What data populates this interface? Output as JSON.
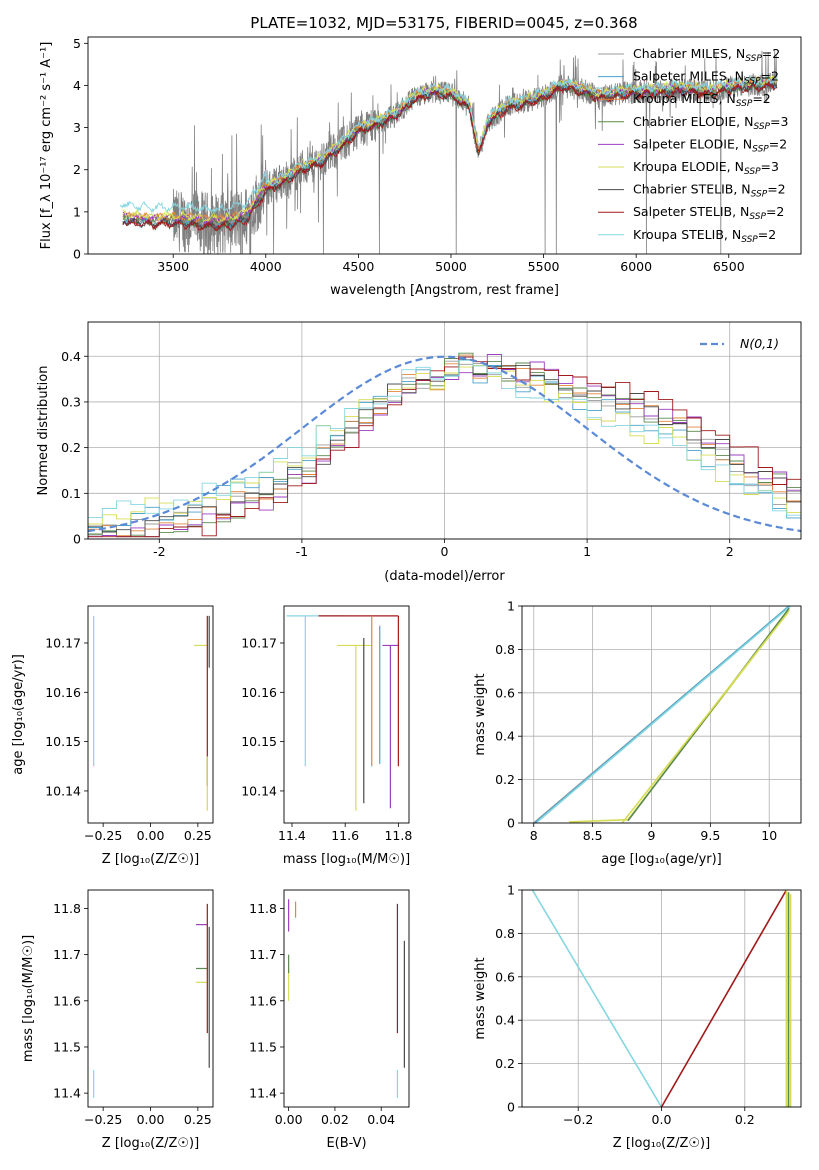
{
  "figure": {
    "title": "PLATE=1032, MJD=53175, FIBERID=0045, z=0.368"
  },
  "colors": {
    "Chabrier MILES": "#9b9b9b",
    "Salpeter MILES": "#4aa3c9",
    "Kroupa MILES": "#e2843c",
    "Chabrier ELODIE": "#5c8a4f",
    "Salpeter ELODIE": "#9b3fc0",
    "Kroupa ELODIE": "#d6dc55",
    "Chabrier STELIB": "#4b4b4b",
    "Salpeter STELIB": "#a11a1a",
    "Kroupa STELIB": "#86d6e0",
    "gaussian": "#5b8ad6",
    "data": "#808080"
  },
  "chart_data": [
    {
      "id": "spectrum",
      "type": "line",
      "xlabel": "wavelength [Angstrom, rest frame]",
      "ylabel": "Flux [f_λ 10⁻¹⁷ erg cm⁻² s⁻¹ A⁻¹]",
      "xlim": [
        3040,
        6890
      ],
      "ylim": [
        0,
        5.15
      ],
      "xticks": [
        3500,
        4000,
        4500,
        5000,
        5500,
        6000,
        6500
      ],
      "yticks": [
        0,
        1,
        2,
        3,
        4,
        5
      ],
      "grid": false,
      "legend_position": "top-right",
      "legend": [
        {
          "name": "Chabrier MILES",
          "label": "Chabrier MILES, N",
          "sub": "SSP",
          "suffix": "=2"
        },
        {
          "name": "Salpeter MILES",
          "label": "Salpeter MILES, N",
          "sub": "SSP",
          "suffix": "=2"
        },
        {
          "name": "Kroupa MILES",
          "label": "Kroupa MILES, N",
          "sub": "SSP",
          "suffix": "=2"
        },
        {
          "name": "Chabrier ELODIE",
          "label": "Chabrier ELODIE, N",
          "sub": "SSP",
          "suffix": "=3"
        },
        {
          "name": "Salpeter ELODIE",
          "label": "Salpeter ELODIE, N",
          "sub": "SSP",
          "suffix": "=2"
        },
        {
          "name": "Kroupa ELODIE",
          "label": "Kroupa ELODIE, N",
          "sub": "SSP",
          "suffix": "=3"
        },
        {
          "name": "Chabrier STELIB",
          "label": "Chabrier STELIB, N",
          "sub": "SSP",
          "suffix": "=2"
        },
        {
          "name": "Salpeter STELIB",
          "label": "Salpeter STELIB, N",
          "sub": "SSP",
          "suffix": "=2"
        },
        {
          "name": "Kroupa STELIB",
          "label": "Kroupa STELIB, N",
          "sub": "SSP",
          "suffix": "=2"
        }
      ],
      "continuum": {
        "wavelength": [
          3220,
          3300,
          3400,
          3500,
          3600,
          3700,
          3800,
          3900,
          4000,
          4100,
          4200,
          4300,
          4400,
          4500,
          4600,
          4700,
          4800,
          4900,
          5000,
          5100,
          5150,
          5200,
          5300,
          5400,
          5500,
          5600,
          5700,
          5800,
          5900,
          6000,
          6100,
          6200,
          6300,
          6400,
          6500,
          6600,
          6750
        ],
        "flux": [
          0.85,
          0.8,
          0.78,
          0.8,
          0.78,
          0.72,
          0.75,
          0.9,
          1.55,
          1.75,
          2.05,
          2.2,
          2.55,
          2.95,
          3.1,
          3.3,
          3.7,
          3.85,
          3.8,
          3.5,
          2.4,
          3.15,
          3.5,
          3.6,
          3.75,
          4.0,
          3.9,
          3.75,
          3.8,
          3.85,
          3.85,
          3.9,
          3.9,
          3.85,
          3.95,
          4.0,
          4.05
        ]
      },
      "data_spectrum": {
        "wavelength_range": [
          3500,
          6760
        ],
        "noise": "high in blue, moderate in red"
      }
    },
    {
      "id": "residuals",
      "type": "histogram",
      "xlabel": "(data-model)/error",
      "ylabel": "Normed distribution",
      "xlim": [
        -2.5,
        2.5
      ],
      "ylim": [
        0,
        0.475
      ],
      "xticks": [
        -2,
        -1,
        0,
        1,
        2
      ],
      "yticks": [
        0.0,
        0.1,
        0.2,
        0.3,
        0.4
      ],
      "grid": true,
      "legend_position": "top-right",
      "gaussian_label": "N(0,1)",
      "bin_edges": [
        -2.5,
        -2.4,
        -2.3,
        -2.2,
        -2.1,
        -2.0,
        -1.9,
        -1.8,
        -1.7,
        -1.6,
        -1.5,
        -1.4,
        -1.3,
        -1.2,
        -1.1,
        -1.0,
        -0.9,
        -0.8,
        -0.7,
        -0.6,
        -0.5,
        -0.4,
        -0.3,
        -0.2,
        -0.1,
        0.0,
        0.1,
        0.2,
        0.3,
        0.4,
        0.5,
        0.6,
        0.7,
        0.8,
        0.9,
        1.0,
        1.1,
        1.2,
        1.3,
        1.4,
        1.5,
        1.6,
        1.7,
        1.8,
        1.9,
        2.0,
        2.1,
        2.2,
        2.3,
        2.4,
        2.5
      ],
      "base_shape": [
        0.02,
        0.02,
        0.025,
        0.03,
        0.035,
        0.045,
        0.05,
        0.06,
        0.07,
        0.08,
        0.09,
        0.1,
        0.11,
        0.13,
        0.15,
        0.17,
        0.2,
        0.22,
        0.24,
        0.27,
        0.3,
        0.32,
        0.34,
        0.35,
        0.35,
        0.37,
        0.38,
        0.37,
        0.37,
        0.36,
        0.35,
        0.35,
        0.34,
        0.33,
        0.32,
        0.31,
        0.3,
        0.29,
        0.28,
        0.26,
        0.25,
        0.24,
        0.22,
        0.2,
        0.18,
        0.16,
        0.14,
        0.12,
        0.1,
        0.09
      ]
    },
    {
      "id": "age-vs-Z",
      "type": "errorbar",
      "xlabel": "Z [log₁₀(Z/Z☉)]",
      "ylabel": "age  [log₁₀(age/yr)]",
      "xlim": [
        -0.33,
        0.33
      ],
      "ylim": [
        10.1335,
        10.1775
      ],
      "xticks": [
        -0.25,
        0.0,
        0.25
      ],
      "xtick_labels": [
        "−0.25",
        "0.00",
        "0.25"
      ],
      "yticks": [
        10.14,
        10.15,
        10.16,
        10.17
      ],
      "points": [
        {
          "name": "Kroupa STELIB",
          "x": -0.3,
          "y": 10.16,
          "ylo": 10.145,
          "yhi": 10.1755
        },
        {
          "name": "Kroupa ELODIE",
          "x": 0.27,
          "y": 10.1695,
          "xlo": 0.23,
          "xhi": 0.3
        },
        {
          "name": "Salpeter STELIB",
          "x": 0.3,
          "y": 10.16,
          "ylo": 10.141,
          "yhi": 10.1755
        },
        {
          "name": "Kroupa ELODIE",
          "x": 0.3,
          "y": 10.14,
          "ylo": 10.136,
          "yhi": 10.147
        },
        {
          "name": "Chabrier STELIB",
          "x": 0.31,
          "y": 10.17,
          "ylo": 10.165,
          "yhi": 10.1755
        }
      ]
    },
    {
      "id": "age-vs-mass",
      "type": "errorbar",
      "xlabel": "mass [log₁₀(M/M☉)]",
      "xlim": [
        11.37,
        11.84
      ],
      "ylim": [
        10.1335,
        10.1775
      ],
      "xticks": [
        11.4,
        11.6,
        11.8
      ],
      "yticks": [
        10.14,
        10.15,
        10.16,
        10.17
      ],
      "points": [
        {
          "name": "Kroupa STELIB",
          "x": 11.45,
          "y": 10.1755,
          "xlo": 11.38,
          "xhi": 11.6,
          "ylo": 10.145,
          "yhi": 10.1755
        },
        {
          "name": "Salpeter STELIB",
          "x": 11.52,
          "y": 10.1755,
          "xlo": 11.5,
          "xhi": 11.8,
          "ylo": 10.1755,
          "yhi": 10.1755
        },
        {
          "name": "Kroupa ELODIE",
          "x": 11.64,
          "y": 10.1695,
          "xlo": 11.57,
          "xhi": 11.7,
          "ylo": 10.136,
          "yhi": 10.1695
        },
        {
          "name": "Chabrier STELIB",
          "x": 11.67,
          "y": 10.1695,
          "ylo": 10.1375,
          "yhi": 10.171
        },
        {
          "name": "Kroupa MILES",
          "x": 11.7,
          "y": 10.1695,
          "ylo": 10.145,
          "yhi": 10.1755
        },
        {
          "name": "Salpeter MILES",
          "x": 11.73,
          "y": 10.1695,
          "ylo": 10.1455,
          "yhi": 10.1735
        },
        {
          "name": "Salpeter ELODIE",
          "x": 11.77,
          "y": 10.1695,
          "xlo": 11.74,
          "xhi": 11.8,
          "ylo": 10.1365,
          "yhi": 10.1695
        },
        {
          "name": "Salpeter STELIB",
          "x": 11.8,
          "y": 10.1695,
          "ylo": 10.145,
          "yhi": 10.1755
        }
      ]
    },
    {
      "id": "mass-weight-vs-age",
      "type": "line",
      "xlabel": "age  [log₁₀(age/yr)]",
      "ylabel": "mass weight",
      "xlim": [
        7.9,
        10.27
      ],
      "ylim": [
        0,
        1
      ],
      "xticks": [
        8.0,
        8.5,
        9.0,
        9.5,
        10.0
      ],
      "yticks": [
        0.0,
        0.2,
        0.4,
        0.6,
        0.8,
        1.0
      ],
      "grid": true,
      "series": [
        {
          "color": "Chabrier MILES",
          "x": [
            8.0,
            10.17
          ],
          "y": [
            0.0,
            1.0
          ]
        },
        {
          "color": "Salpeter MILES",
          "x": [
            8.01,
            10.17
          ],
          "y": [
            0.0,
            1.0
          ]
        },
        {
          "color": "Kroupa STELIB",
          "x": [
            8.03,
            10.18
          ],
          "y": [
            0.005,
            1.0
          ]
        },
        {
          "color": "Kroupa ELODIE",
          "x": [
            8.3,
            8.8,
            10.17
          ],
          "y": [
            0.005,
            0.015,
            0.98
          ]
        },
        {
          "color": "Chabrier ELODIE",
          "x": [
            8.8,
            10.17
          ],
          "y": [
            0.01,
            0.99
          ]
        },
        {
          "color": "Kroupa ELODIE",
          "x": [
            8.75,
            10.16
          ],
          "y": [
            0.0,
            0.97
          ]
        }
      ]
    },
    {
      "id": "mass-vs-Z",
      "type": "errorbar",
      "xlabel": "Z [log₁₀(Z/Z☉)]",
      "ylabel": "mass [log₁₀(M/M☉)]",
      "xlim": [
        -0.33,
        0.33
      ],
      "ylim": [
        11.37,
        11.84
      ],
      "xticks": [
        -0.25,
        0.0,
        0.25
      ],
      "xtick_labels": [
        "−0.25",
        "0.00",
        "0.25"
      ],
      "yticks": [
        11.4,
        11.5,
        11.6,
        11.7,
        11.8
      ],
      "points": [
        {
          "name": "Kroupa STELIB",
          "x": -0.3,
          "y": 11.42,
          "ylo": 11.39,
          "yhi": 11.45
        },
        {
          "name": "Salpeter ELODIE",
          "x": 0.27,
          "y": 11.765,
          "xlo": 0.24,
          "xhi": 0.3
        },
        {
          "name": "Chabrier ELODIE",
          "x": 0.27,
          "y": 11.67,
          "xlo": 0.24,
          "xhi": 0.3
        },
        {
          "name": "Kroupa ELODIE",
          "x": 0.27,
          "y": 11.64,
          "xlo": 0.24,
          "xhi": 0.3
        },
        {
          "name": "Salpeter STELIB",
          "x": 0.3,
          "y": 11.7,
          "ylo": 11.53,
          "yhi": 11.81
        },
        {
          "name": "Chabrier STELIB",
          "x": 0.31,
          "y": 11.6,
          "ylo": 11.455,
          "yhi": 11.76
        }
      ]
    },
    {
      "id": "mass-vs-EBV",
      "type": "errorbar",
      "xlabel": "E(B-V)",
      "xlim": [
        -0.002,
        0.052
      ],
      "ylim": [
        11.37,
        11.84
      ],
      "xticks": [
        0.0,
        0.02,
        0.04
      ],
      "xtick_labels": [
        "0.00",
        "0.02",
        "0.04"
      ],
      "yticks": [
        11.4,
        11.5,
        11.6,
        11.7,
        11.8
      ],
      "points": [
        {
          "name": "Salpeter ELODIE",
          "x": 0.0,
          "y": 11.78,
          "ylo": 11.75,
          "yhi": 11.82
        },
        {
          "name": "Kroupa ELODIE",
          "x": 0.0,
          "y": 11.64,
          "ylo": 11.6,
          "yhi": 11.67
        },
        {
          "name": "Chabrier ELODIE",
          "x": 0.0,
          "y": 11.68,
          "ylo": 11.66,
          "yhi": 11.7
        },
        {
          "name": "Kroupa MILES",
          "x": 0.003,
          "y": 11.8,
          "ylo": 11.78,
          "yhi": 11.815
        },
        {
          "name": "Kroupa STELIB",
          "x": 0.047,
          "y": 11.42,
          "ylo": 11.39,
          "yhi": 11.45
        },
        {
          "name": "Salpeter STELIB",
          "x": 0.047,
          "y": 11.67,
          "ylo": 11.53,
          "yhi": 11.81
        },
        {
          "name": "Chabrier STELIB",
          "x": 0.05,
          "y": 11.6,
          "ylo": 11.455,
          "yhi": 11.73
        }
      ]
    },
    {
      "id": "mass-weight-vs-Z",
      "type": "line",
      "xlabel": "Z [log₁₀(Z/Z☉)]",
      "ylabel": "mass weight",
      "xlim": [
        -0.335,
        0.335
      ],
      "ylim": [
        0,
        1
      ],
      "xticks": [
        -0.2,
        0.0,
        0.2
      ],
      "xtick_labels": [
        "−0.2",
        "0.0",
        "0.2"
      ],
      "yticks": [
        0.0,
        0.2,
        0.4,
        0.6,
        0.8,
        1.0
      ],
      "grid": true,
      "series": [
        {
          "color": "Kroupa STELIB",
          "x": [
            -0.31,
            0.0
          ],
          "y": [
            1.0,
            0.0
          ]
        },
        {
          "color": "Salpeter STELIB",
          "x": [
            0.0,
            0.3
          ],
          "y": [
            0.0,
            1.0
          ]
        },
        {
          "color": "Kroupa ELODIE",
          "x": [
            0.3,
            0.3
          ],
          "y": [
            0.0,
            1.0
          ]
        },
        {
          "color": "Chabrier ELODIE",
          "x": [
            0.305,
            0.305
          ],
          "y": [
            0.0,
            0.99
          ]
        },
        {
          "color": "Kroupa ELODIE",
          "x": [
            0.31,
            0.31
          ],
          "y": [
            0.0,
            0.98
          ]
        }
      ]
    }
  ]
}
